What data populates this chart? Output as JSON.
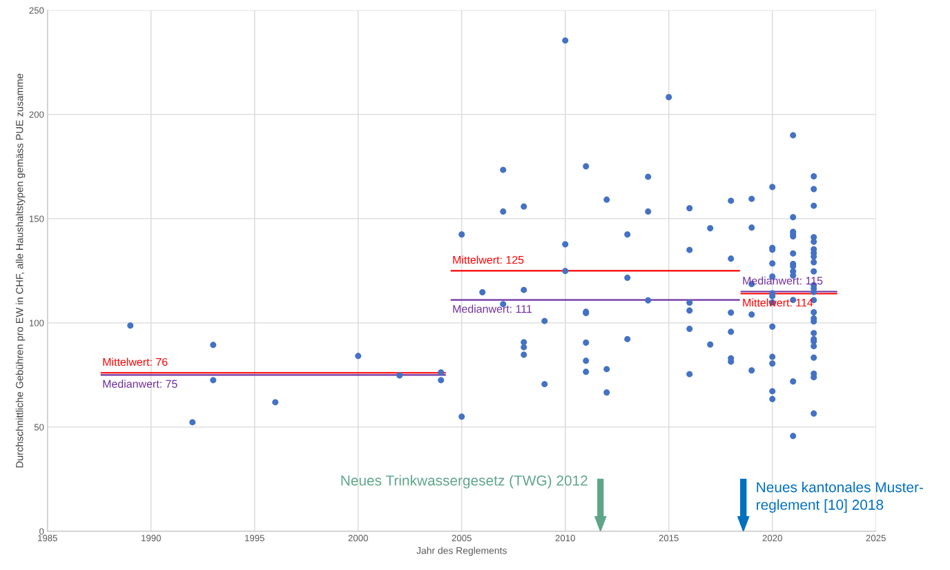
{
  "chart_data": {
    "type": "scatter",
    "xlabel": "Jahr des Reglements",
    "ylabel": "Durchschnittliche Gebühren pro EW in CHF, alle Haushaltstypen gemäss PUE zusamme",
    "xlim": [
      1985,
      2025
    ],
    "xticks": [
      1985,
      1990,
      1995,
      2000,
      2005,
      2010,
      2015,
      2020,
      2025
    ],
    "ylim": [
      0,
      250
    ],
    "yticks": [
      0,
      50,
      100,
      150,
      200,
      250
    ],
    "grid": true,
    "legend": false,
    "series": [
      {
        "marker": "circle",
        "color": "#4472c4",
        "x": [
          1989,
          1992,
          1993,
          1993,
          1996,
          2000,
          2002,
          2004,
          2004,
          2005,
          2005,
          2006,
          2007,
          2007,
          2007,
          2008,
          2008,
          2008,
          2008,
          2008,
          2009,
          2009,
          2010,
          2010,
          2010,
          2011,
          2011,
          2011,
          2011,
          2011,
          2011,
          2012,
          2012,
          2012,
          2013,
          2013,
          2013,
          2014,
          2014,
          2014,
          2015,
          2016,
          2016,
          2016,
          2016,
          2016,
          2016,
          2017,
          2017,
          2018,
          2018,
          2018,
          2018,
          2018,
          2018,
          2019,
          2019,
          2019,
          2019,
          2019,
          2020,
          2020,
          2020,
          2020,
          2020,
          2020,
          2020,
          2020,
          2020,
          2020,
          2020,
          2020,
          2020,
          2021,
          2021,
          2021,
          2021,
          2021,
          2021,
          2021,
          2021,
          2021,
          2021,
          2021,
          2021,
          2021,
          2022,
          2022,
          2022,
          2022,
          2022,
          2022,
          2022,
          2022,
          2022,
          2022,
          2022,
          2022,
          2022,
          2022,
          2022,
          2022,
          2022,
          2022,
          2022,
          2022,
          2022,
          2022,
          2022,
          2022,
          2022
        ],
        "values": [
          98.7,
          52.3,
          89.4,
          72.5,
          61.9,
          84.1,
          74.8,
          76.2,
          72.5,
          142.4,
          55.0,
          114.7,
          173.4,
          153.4,
          109.0,
          155.8,
          115.8,
          90.7,
          88.3,
          84.7,
          100.9,
          70.6,
          235.5,
          137.7,
          124.9,
          175.1,
          104.7,
          105.3,
          90.5,
          81.8,
          76.5,
          159.1,
          77.8,
          66.6,
          142.4,
          121.6,
          92.2,
          170.1,
          153.4,
          110.8,
          208.3,
          155.0,
          135.0,
          109.7,
          105.9,
          97.1,
          75.4,
          145.4,
          89.6,
          158.6,
          130.8,
          104.9,
          95.7,
          83.0,
          81.4,
          159.5,
          145.7,
          118.6,
          104.0,
          77.2,
          165.2,
          136.0,
          135.1,
          128.5,
          122.2,
          114.2,
          112.8,
          109.8,
          98.2,
          83.7,
          80.5,
          67.2,
          63.4,
          190.0,
          150.7,
          143.7,
          142.6,
          141.5,
          133.3,
          128.3,
          127.2,
          124.7,
          122.7,
          111.0,
          71.9,
          45.7,
          170.3,
          164.2,
          156.2,
          141.1,
          138.9,
          135.3,
          133.5,
          131.8,
          129.1,
          124.7,
          118.1,
          116.5,
          114.8,
          110.9,
          105.1,
          102.1,
          100.7,
          95.1,
          92.2,
          91.1,
          88.8,
          83.3,
          75.6,
          73.9,
          56.5
        ]
      },
      {
        "type": "line",
        "name": "Mittelwert: 76",
        "color": "#ff0000",
        "x": [
          1987.6,
          2004.2
        ],
        "values": [
          76,
          76
        ]
      },
      {
        "type": "line",
        "name": "Medianwert: 75",
        "color": "#7030a0",
        "x": [
          1987.6,
          2004.2
        ],
        "values": [
          75,
          75
        ]
      },
      {
        "type": "line",
        "name": "Mittelwert: 125",
        "color": "#ff0000",
        "x": [
          2004.5,
          2018.4
        ],
        "values": [
          125,
          125
        ]
      },
      {
        "type": "line",
        "name": "Medianwert: 111",
        "color": "#7030a0",
        "x": [
          2004.5,
          2018.4
        ],
        "values": [
          111,
          111
        ]
      },
      {
        "type": "line",
        "name": "Medianwert: 115",
        "color": "#7030a0",
        "x": [
          2018.5,
          2023.1
        ],
        "values": [
          115,
          115
        ]
      },
      {
        "type": "line",
        "name": "Mittelwert: 114",
        "color": "#ff0000",
        "x": [
          2018.5,
          2023.1
        ],
        "values": [
          114,
          114
        ]
      }
    ],
    "ref_lines": [
      {
        "axis": "x",
        "value": 2011.7,
        "label": "Neues Trinkwassergesetz (TWG) 2012",
        "color": "#5fa58a"
      },
      {
        "axis": "x",
        "value": 2018.6,
        "label": "Neues kantonales Muster-\nreglement [10] 2018",
        "color": "#0070c0"
      }
    ]
  }
}
